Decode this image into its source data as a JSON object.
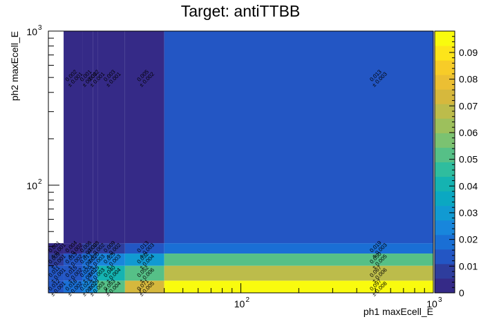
{
  "chart_data": {
    "type": "heatmap",
    "title": "Target: antiTTBB",
    "xlabel": "ph1 maxEcell_E",
    "ylabel": "ph2 maxEcell_E",
    "x_scale": "log",
    "y_scale": "log",
    "xlim": [
      10,
      1000
    ],
    "ylim": [
      20,
      1000
    ],
    "x_ticks": [
      {
        "value": 100,
        "base": "10",
        "exp": "2"
      },
      {
        "value": 1000,
        "base": "10",
        "exp": "3"
      }
    ],
    "y_ticks": [
      {
        "value": 100,
        "base": "10",
        "exp": "2"
      },
      {
        "value": 1000,
        "base": "10",
        "exp": "3"
      }
    ],
    "z_range": [
      0,
      0.098
    ],
    "z_ticks": [
      "0",
      "0.01",
      "0.02",
      "0.03",
      "0.04",
      "0.05",
      "0.06",
      "0.07",
      "0.08",
      "0.09"
    ],
    "x_edges": [
      10,
      12,
      15,
      17,
      18,
      25,
      40,
      1000
    ],
    "y_edges": [
      20,
      24,
      30,
      36,
      42,
      1000
    ],
    "cells": [
      {
        "x0": 10,
        "x1": 12,
        "y0": 20,
        "y1": 24,
        "z": 0.012,
        "err": 0.001
      },
      {
        "x0": 12,
        "x1": 15,
        "y0": 20,
        "y1": 24,
        "z": 0.018,
        "err": 0.002
      },
      {
        "x0": 15,
        "x1": 17,
        "y0": 20,
        "y1": 24,
        "z": 0.023,
        "err": 0.002
      },
      {
        "x0": 17,
        "x1": 18,
        "y0": 20,
        "y1": 24,
        "z": 0.029,
        "err": 0.003
      },
      {
        "x0": 18,
        "x1": 25,
        "y0": 20,
        "y1": 24,
        "z": 0.053,
        "err": 0.004
      },
      {
        "x0": 25,
        "x1": 40,
        "y0": 20,
        "y1": 24,
        "z": 0.071,
        "err": 0.005
      },
      {
        "x0": 40,
        "x1": 1000,
        "y0": 20,
        "y1": 24,
        "z": 0.097,
        "err": 0.008
      },
      {
        "x0": 10,
        "x1": 12,
        "y0": 24,
        "y1": 30,
        "z": 0.011,
        "err": 0.001
      },
      {
        "x0": 12,
        "x1": 15,
        "y0": 24,
        "y1": 30,
        "z": 0.015,
        "err": 0.002
      },
      {
        "x0": 15,
        "x1": 17,
        "y0": 24,
        "y1": 30,
        "z": 0.02,
        "err": 0.002
      },
      {
        "x0": 17,
        "x1": 18,
        "y0": 24,
        "y1": 30,
        "z": 0.025,
        "err": 0.003
      },
      {
        "x0": 18,
        "x1": 25,
        "y0": 24,
        "y1": 30,
        "z": 0.04,
        "err": 0.004
      },
      {
        "x0": 25,
        "x1": 40,
        "y0": 24,
        "y1": 30,
        "z": 0.052,
        "err": 0.006
      },
      {
        "x0": 40,
        "x1": 1000,
        "y0": 24,
        "y1": 30,
        "z": 0.067,
        "err": 0.006
      },
      {
        "x0": 10,
        "x1": 12,
        "y0": 30,
        "y1": 36,
        "z": 0.009,
        "err": 0.001
      },
      {
        "x0": 12,
        "x1": 15,
        "y0": 30,
        "y1": 36,
        "z": 0.013,
        "err": 0.002
      },
      {
        "x0": 15,
        "x1": 17,
        "y0": 30,
        "y1": 36,
        "z": 0.017,
        "err": 0.002
      },
      {
        "x0": 17,
        "x1": 18,
        "y0": 30,
        "y1": 36,
        "z": 0.02,
        "err": 0.003
      },
      {
        "x0": 18,
        "x1": 25,
        "y0": 30,
        "y1": 36,
        "z": 0.025,
        "err": 0.003
      },
      {
        "x0": 25,
        "x1": 40,
        "y0": 30,
        "y1": 36,
        "z": 0.032,
        "err": 0.004
      },
      {
        "x0": 40,
        "x1": 1000,
        "y0": 30,
        "y1": 36,
        "z": 0.05,
        "err": 0.005
      },
      {
        "x0": 10,
        "x1": 12,
        "y0": 36,
        "y1": 42,
        "z": 0.001,
        "err": 0.001
      },
      {
        "x0": 12,
        "x1": 15,
        "y0": 36,
        "y1": 42,
        "z": 0.004,
        "err": 0.002
      },
      {
        "x0": 15,
        "x1": 17,
        "y0": 36,
        "y1": 42,
        "z": 0.006,
        "err": 0.002
      },
      {
        "x0": 17,
        "x1": 18,
        "y0": 36,
        "y1": 42,
        "z": 0.008,
        "err": 0.002
      },
      {
        "x0": 18,
        "x1": 25,
        "y0": 36,
        "y1": 42,
        "z": 0.009,
        "err": 0.002
      },
      {
        "x0": 25,
        "x1": 40,
        "y0": 36,
        "y1": 42,
        "z": 0.013,
        "err": 0.003
      },
      {
        "x0": 40,
        "x1": 1000,
        "y0": 36,
        "y1": 42,
        "z": 0.019,
        "err": 0.003
      },
      {
        "x0": 12,
        "x1": 15,
        "y0": 42,
        "y1": 1000,
        "z": 0.002,
        "err": 0.001
      },
      {
        "x0": 15,
        "x1": 17,
        "y0": 42,
        "y1": 1000,
        "z": 0.001,
        "err": 0.001
      },
      {
        "x0": 17,
        "x1": 18,
        "y0": 42,
        "y1": 1000,
        "z": 0.002,
        "err": 0.001
      },
      {
        "x0": 18,
        "x1": 25,
        "y0": 42,
        "y1": 1000,
        "z": 0.003,
        "err": 0.001
      },
      {
        "x0": 25,
        "x1": 40,
        "y0": 42,
        "y1": 1000,
        "z": 0.005,
        "err": 0.002
      },
      {
        "x0": 40,
        "x1": 1000,
        "y0": 42,
        "y1": 1000,
        "z": 0.013,
        "err": 0.003
      }
    ],
    "palette": [
      "#352a87",
      "#2e3d9d",
      "#2356c4",
      "#1a6fd5",
      "#1886dc",
      "#119ad2",
      "#0ba8c2",
      "#15b3b1",
      "#2fbd9e",
      "#56c087",
      "#7bc271",
      "#9dc05c",
      "#bcbc4b",
      "#d6b83d",
      "#ebbf33",
      "#f7cc28",
      "#fde51a",
      "#f9fb0e"
    ],
    "colors": {
      "empty": "#ffffff",
      "frame": "#000000",
      "text": "#000000"
    }
  }
}
